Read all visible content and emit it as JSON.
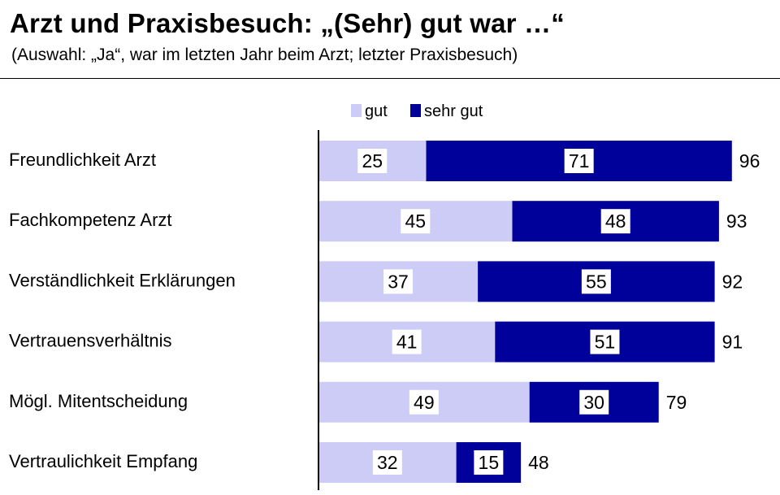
{
  "header": {
    "title": "Arzt und Praxisbesuch: „(Sehr) gut war …“",
    "subtitle": "(Auswahl: „Ja“, war im letzten Jahr beim Arzt; letzter Praxisbesuch)"
  },
  "chart_data": {
    "type": "bar",
    "orientation": "horizontal",
    "stacked": true,
    "categories": [
      "Freundlichkeit Arzt",
      "Fachkompetenz Arzt",
      "Verständlichkeit Erklärungen",
      "Vertrauensverhältnis",
      "Mögl. Mitentscheidung",
      "Vertraulichkeit Empfang"
    ],
    "series": [
      {
        "name": "gut",
        "color": "#ccccf7",
        "values": [
          25,
          45,
          37,
          41,
          49,
          32
        ]
      },
      {
        "name": "sehr gut",
        "color": "#00009a",
        "values": [
          71,
          48,
          55,
          51,
          30,
          15
        ]
      }
    ],
    "totals": [
      96,
      93,
      92,
      91,
      79,
      48
    ],
    "xlim": [
      0,
      100
    ],
    "legend_position": "top",
    "grid": false
  }
}
